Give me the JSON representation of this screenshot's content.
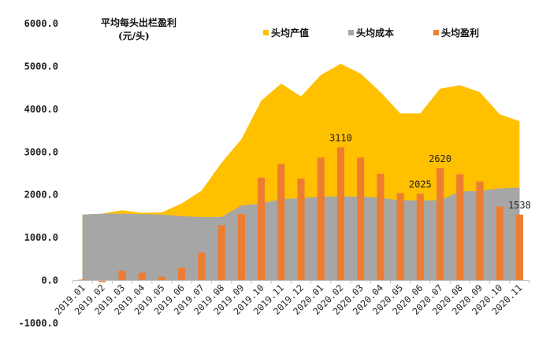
{
  "chart_data": {
    "type": "area",
    "title": "平均每头出栏盈利",
    "subtitle": "(元/头)",
    "categories": [
      "2019.01",
      "2019.02",
      "2019.03",
      "2019.04",
      "2019.05",
      "2019.06",
      "2019.07",
      "2019.08",
      "2019.09",
      "2019.10",
      "2019.11",
      "2019.12",
      "2020.01",
      "2020.02",
      "2020.03",
      "2020.04",
      "2020.05",
      "2020.06",
      "2020.07",
      "2020.08",
      "2020.09",
      "2020.10",
      "2020.11"
    ],
    "ylim": [
      -1000,
      6000
    ],
    "yticks": [
      -1000,
      0,
      1000,
      2000,
      3000,
      4000,
      5000,
      6000
    ],
    "ytick_labels": [
      "-1000.0",
      "0.0",
      "1000.0",
      "2000.0",
      "3000.0",
      "4000.0",
      "5000.0",
      "6000.0"
    ],
    "legend_position": "top-right",
    "series": [
      {
        "name": "头均产值",
        "type": "area",
        "color": "#FFC000",
        "values": [
          1540,
          1560,
          1640,
          1580,
          1590,
          1800,
          2100,
          2750,
          3300,
          4200,
          4600,
          4300,
          4800,
          5060,
          4830,
          4400,
          3900,
          3900,
          4480,
          4560,
          4400,
          3880,
          3720
        ]
      },
      {
        "name": "头均成本",
        "type": "area",
        "color": "#A6A6A6",
        "values": [
          1540,
          1560,
          1560,
          1550,
          1540,
          1500,
          1480,
          1480,
          1750,
          1800,
          1900,
          1920,
          1960,
          1960,
          1960,
          1930,
          1870,
          1870,
          1870,
          2080,
          2090,
          2150,
          2170
        ]
      },
      {
        "name": "头均盈利",
        "type": "bar",
        "color": "#ED7D31",
        "values": [
          20,
          -40,
          230,
          180,
          90,
          300,
          650,
          1290,
          1550,
          2400,
          2720,
          2380,
          2870,
          3110,
          2870,
          2490,
          2040,
          2025,
          2620,
          2480,
          2310,
          1730,
          1538
        ]
      }
    ],
    "data_labels": [
      {
        "category": "2020.02",
        "text": "3110"
      },
      {
        "category": "2020.06",
        "text": "2025"
      },
      {
        "category": "2020.07",
        "text": "2620"
      },
      {
        "category": "2020.11",
        "text": "1538"
      }
    ]
  }
}
